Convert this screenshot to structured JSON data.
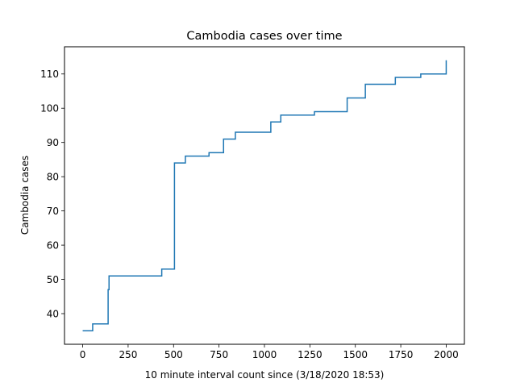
{
  "chart_data": {
    "type": "line",
    "drawstyle": "steps-post",
    "title": "Cambodia cases over time",
    "xlabel": "10 minute interval count since (3/18/2020 18:53)",
    "ylabel": "Cambodia cases",
    "xlim": [
      -100,
      2100
    ],
    "ylim": [
      31.05,
      117.95
    ],
    "xticks": [
      0,
      250,
      500,
      750,
      1000,
      1250,
      1500,
      1750,
      2000
    ],
    "yticks": [
      40,
      50,
      60,
      70,
      80,
      90,
      100,
      110
    ],
    "grid": false,
    "legend": "none",
    "colors": {
      "series": "#1f77b4",
      "axes": "#000000",
      "background": "#ffffff"
    },
    "series": [
      {
        "x": [
          0,
          55,
          140,
          145,
          300,
          435,
          505,
          565,
          695,
          775,
          840,
          1035,
          1090,
          1275,
          1455,
          1555,
          1720,
          1860,
          2000
        ],
        "values": [
          35,
          37,
          47,
          51,
          51,
          53,
          84,
          86,
          87,
          91,
          93,
          96,
          98,
          99,
          103,
          107,
          109,
          110,
          114
        ]
      }
    ]
  }
}
